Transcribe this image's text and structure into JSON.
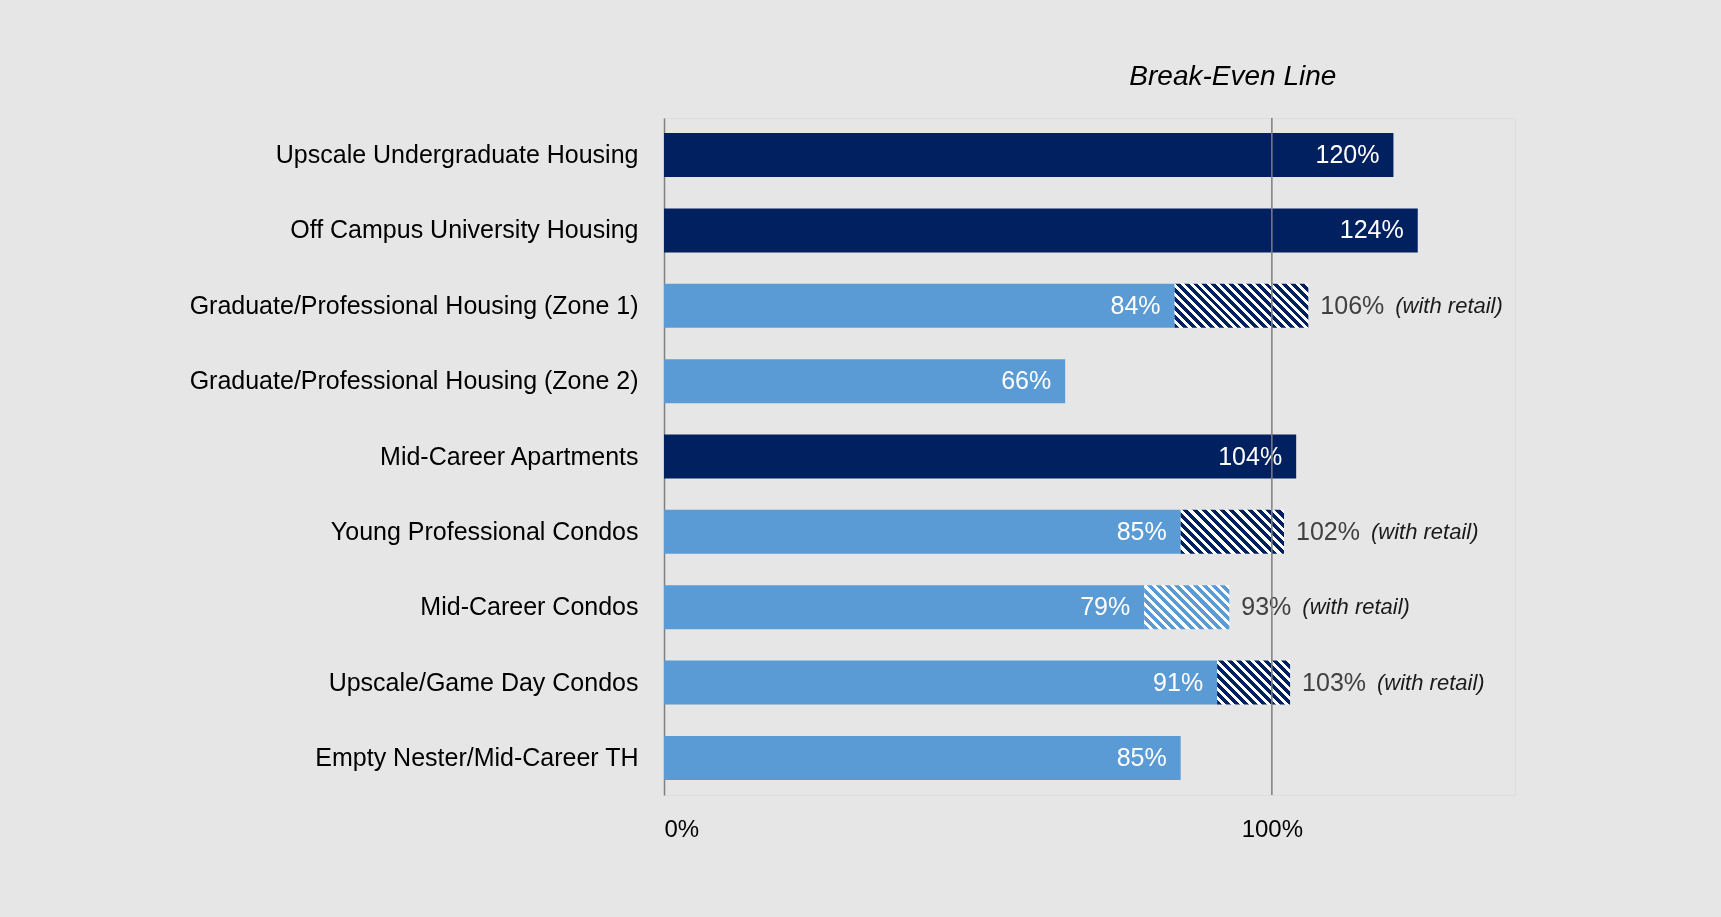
{
  "chart_data": {
    "type": "bar",
    "orientation": "horizontal",
    "stacked": true,
    "categories": [
      "Upscale Undergraduate Housing",
      "Off Campus University Housing",
      "Graduate/Professional Housing (Zone 1)",
      "Graduate/Professional Housing (Zone 2)",
      "Mid-Career Apartments",
      "Young Professional Condos",
      "Mid-Career Condos",
      "Upscale/Game Day Condos",
      "Empty Nester/Mid-Career TH"
    ],
    "series": [
      {
        "colors": [
          "#002060",
          "#002060",
          "#5b9bd5",
          "#5b9bd5",
          "#002060",
          "#5b9bd5",
          "#5b9bd5",
          "#5b9bd5",
          "#5b9bd5"
        ],
        "values": [
          120,
          124,
          84,
          66,
          104,
          85,
          79,
          91,
          85
        ],
        "value_labels": [
          "120%",
          "124%",
          "84%",
          "66%",
          "104%",
          "85%",
          "79%",
          "91%",
          "85%"
        ]
      },
      {
        "colors": [
          null,
          null,
          "#002060",
          null,
          null,
          "#002060",
          "#5b9bd5",
          "#002060",
          null
        ],
        "values": [
          null,
          null,
          22,
          null,
          null,
          17,
          14,
          12,
          null
        ]
      }
    ],
    "totals": [
      null,
      null,
      "106%",
      null,
      null,
      "102%",
      "93%",
      "103%",
      null
    ],
    "xlim": [
      0,
      140
    ],
    "xticks": [
      {
        "value": 0,
        "label": "0%"
      },
      {
        "value": 100,
        "label": "100%"
      }
    ],
    "ref_lines": [
      {
        "axis": "x",
        "value": 100,
        "label": "Break-Even Line",
        "color": "#7f7f7f"
      }
    ],
    "annotations": [
      "(with retail)",
      "(with retail)",
      "(with retail)",
      "(with retail)"
    ]
  }
}
